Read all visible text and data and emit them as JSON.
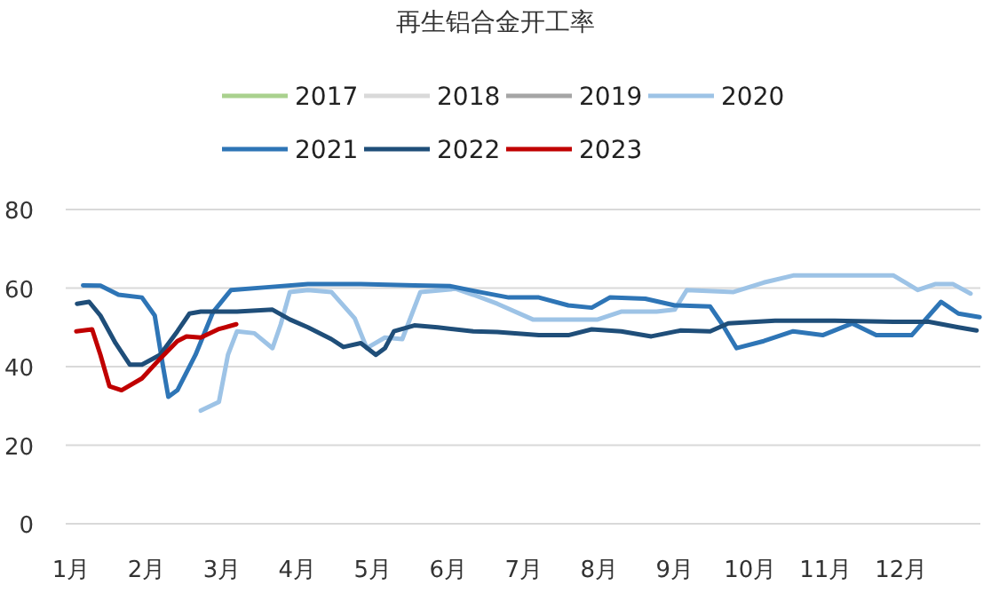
{
  "chart_data": {
    "type": "line",
    "title": "再生铝合金开工率",
    "xlim": [
      0.93,
      13.05
    ],
    "xticks": [
      {
        "value": 1,
        "label": "1月"
      },
      {
        "value": 2,
        "label": "2月"
      },
      {
        "value": 3,
        "label": "3月"
      },
      {
        "value": 4,
        "label": "4月"
      },
      {
        "value": 5,
        "label": "5月"
      },
      {
        "value": 6,
        "label": "6月"
      },
      {
        "value": 7,
        "label": "7月"
      },
      {
        "value": 8,
        "label": "8月"
      },
      {
        "value": 9,
        "label": "9月"
      },
      {
        "value": 10,
        "label": "10月"
      },
      {
        "value": 11,
        "label": "11月"
      },
      {
        "value": 12,
        "label": "12月"
      }
    ],
    "ylim": [
      0,
      80
    ],
    "yticks": [
      0,
      20,
      40,
      60,
      80
    ],
    "grid": "y",
    "legend": "top",
    "marker": "none",
    "line_style": "solid",
    "series": [
      {
        "name": "2017",
        "color": "#a9d18e"
      },
      {
        "name": "2018",
        "color": "#d9d9d9"
      },
      {
        "name": "2019",
        "color": "#a5a5a5"
      },
      {
        "name": "2020",
        "color": "#9dc3e6",
        "x": [
          2.72,
          2.96,
          3.08,
          3.2,
          3.43,
          3.67,
          3.78,
          3.9,
          4.14,
          4.45,
          4.76,
          4.92,
          5.16,
          5.39,
          5.63,
          6.1,
          6.33,
          6.65,
          7.12,
          7.59,
          7.98,
          8.29,
          8.76,
          9.0,
          9.16,
          9.78,
          10.18,
          10.57,
          11.12,
          11.9,
          12.22,
          12.45,
          12.69,
          12.92
        ],
        "values": [
          28.8,
          31,
          43,
          49,
          48.5,
          44.7,
          50.8,
          59,
          59.5,
          59,
          52.3,
          44.7,
          47.4,
          47,
          59,
          59.8,
          58.3,
          56,
          52,
          52,
          52,
          54,
          54,
          54.5,
          59.5,
          59,
          61.4,
          63.2,
          63.2,
          63.2,
          59.5,
          61,
          61,
          58.6
        ]
      },
      {
        "name": "2021",
        "color": "#2e75b6",
        "x": [
          1.16,
          1.39,
          1.63,
          1.94,
          2.11,
          2.22,
          2.29,
          2.41,
          2.65,
          2.88,
          3.12,
          3.59,
          4.14,
          4.84,
          5.55,
          6.02,
          6.41,
          6.8,
          7.2,
          7.59,
          7.9,
          8.14,
          8.61,
          9.0,
          9.47,
          9.63,
          9.82,
          10.18,
          10.57,
          10.96,
          11.35,
          11.67,
          12.14,
          12.53,
          12.76,
          13.04
        ],
        "values": [
          60.7,
          60.6,
          58.3,
          57.6,
          53,
          40,
          32.3,
          34,
          43,
          53.8,
          59.5,
          60.2,
          61,
          61,
          60.7,
          60.5,
          59,
          57.6,
          57.6,
          55.6,
          55,
          57.6,
          57.3,
          55.6,
          55.3,
          50.8,
          44.7,
          46.5,
          49,
          48,
          51,
          48,
          48,
          56.5,
          53.5,
          52.6
        ]
      },
      {
        "name": "2022",
        "color": "#1f4e79",
        "x": [
          1.08,
          1.24,
          1.39,
          1.59,
          1.78,
          1.94,
          2.18,
          2.41,
          2.57,
          2.72,
          3.2,
          3.67,
          3.9,
          4.14,
          4.45,
          4.61,
          4.84,
          5.04,
          5.16,
          5.28,
          5.55,
          5.86,
          6.33,
          6.65,
          7.2,
          7.59,
          7.9,
          8.29,
          8.69,
          9.08,
          9.47,
          9.71,
          10.33,
          11.12,
          11.9,
          12.37,
          12.76,
          13.0
        ],
        "values": [
          56,
          56.5,
          53,
          46,
          40.5,
          40.5,
          43,
          49,
          53.5,
          54,
          54,
          54.5,
          52,
          50,
          47,
          45,
          46,
          43,
          44.7,
          49,
          50.5,
          50,
          49,
          48.8,
          48,
          48,
          49.5,
          49,
          47.7,
          49.2,
          49,
          51,
          51.7,
          51.7,
          51.4,
          51.4,
          50,
          49.2
        ]
      },
      {
        "name": "2023",
        "color": "#c00000",
        "x": [
          1.07,
          1.28,
          1.39,
          1.51,
          1.67,
          1.94,
          2.18,
          2.41,
          2.53,
          2.72,
          2.95,
          3.19
        ],
        "values": [
          49,
          49.5,
          43,
          35,
          34,
          37,
          42,
          46.5,
          47.7,
          47.4,
          49.5,
          50.8
        ]
      }
    ]
  }
}
